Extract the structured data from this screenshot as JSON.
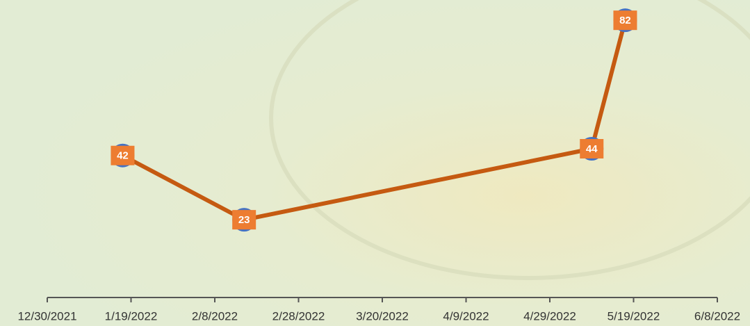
{
  "chart_data": {
    "type": "line",
    "x": [
      "2022-01-17",
      "2022-02-15",
      "2022-05-09",
      "2022-05-17"
    ],
    "series": [
      {
        "color": "#c55a11",
        "values": [
          42,
          23,
          44,
          82
        ]
      }
    ],
    "xlim": [
      "2021-12-30",
      "2022-06-08"
    ],
    "xticks": [
      {
        "value": "2021-12-30",
        "label": "12/30/2021"
      },
      {
        "value": "2022-01-19",
        "label": "1/19/2022"
      },
      {
        "value": "2022-02-08",
        "label": "2/8/2022"
      },
      {
        "value": "2022-02-28",
        "label": "2/28/2022"
      },
      {
        "value": "2022-03-20",
        "label": "3/20/2022"
      },
      {
        "value": "2022-04-09",
        "label": "4/9/2022"
      },
      {
        "value": "2022-04-29",
        "label": "4/29/2022"
      },
      {
        "value": "2022-05-19",
        "label": "5/19/2022"
      },
      {
        "value": "2022-06-08",
        "label": "6/8/2022"
      }
    ],
    "ylim": [
      0,
      88
    ]
  }
}
